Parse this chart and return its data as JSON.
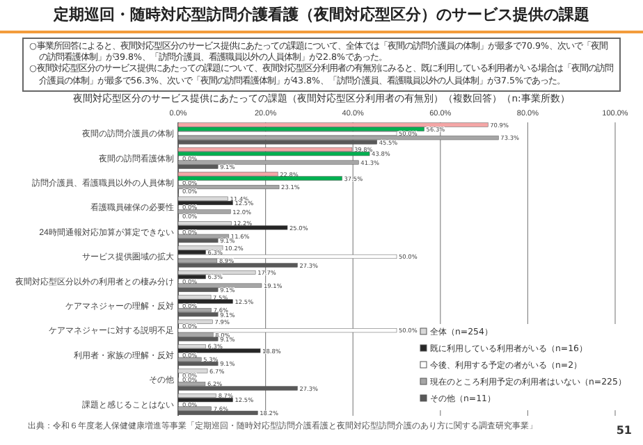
{
  "chart_data": {
    "type": "bar",
    "orientation": "horizontal",
    "title": "定期巡回・随時対応型訪問介護看護（夜間対応型区分）のサービス提供の課題",
    "subtitle": "夜間対応型区分のサービス提供にあたっての課題（夜間対応型区分利用者の有無別）（複数回答）（n:事業所数）",
    "annotations": [
      "○事業所回答によると、夜間対応型区分のサービス提供にあたっての課題について、全体では「夜間の訪問介護員の体制」が最多で70.9%、次いで「夜間の訪問看護体制」が39.8%、「訪問介護員、看護職員以外の人員体制」が22.8%であった。",
      "○夜間対応型区分のサービス提供にあたっての課題について、夜間対応型区分利用者の有無別にみると、既に利用している利用者がいる場合は「夜間の訪問介護員の体制」が最多で56.3%、次いで「夜間の訪問看護体制」が43.8%、「訪問介護員、看護職員以外の人員体制」が37.5%であった。",
      "出典：令和６年度老人保健健康増進等事業「定期巡回・随時対応型訪問介護看護と夜間対応型訪問介護のあり方に関する調査研究事業」",
      "51"
    ],
    "categories": [
      "夜間の訪問介護員の体制",
      "夜間の訪問看護体制",
      "訪問介護員、看護職員以外の人員体制",
      "看護職員確保の必要性",
      "24時間通報対応加算が算定できない",
      "サービス提供圏域の拡大",
      "夜間対応型区分以外の利用者との棲み分け",
      "ケアマネジャーの理解・反対",
      "ケアマネジャーに対する説明不足",
      "利用者・家族の理解・反対",
      "その他",
      "課題と感じることはない"
    ],
    "series": [
      {
        "name": "全体（n=254）",
        "color": "#d9d9d9",
        "colors": [
          "#f4a6a6",
          "#f4a6a6",
          "#f4a6a6",
          "#d9d9d9",
          "#d9d9d9",
          "#d9d9d9",
          "#d9d9d9",
          "#d9d9d9",
          "#d9d9d9",
          "#d9d9d9",
          "#d9d9d9",
          "#d9d9d9"
        ],
        "values": [
          70.9,
          39.8,
          22.8,
          11.4,
          12.2,
          10.2,
          17.7,
          7.5,
          7.9,
          6.3,
          6.7,
          8.7
        ],
        "value_labels": [
          "70.9%",
          "39.8%",
          "22.8%",
          "11.4%",
          "12.2%",
          "10.2%",
          "17.7%",
          "7.5%",
          "7.9%",
          "6.3%",
          "6.7%",
          "8.7%"
        ]
      },
      {
        "name": "既に利用している利用者がいる（n=16）",
        "color": "#262626",
        "colors": [
          "#00b050",
          "#00b050",
          "#00b050",
          "#262626",
          "#262626",
          "#262626",
          "#262626",
          "#262626",
          "#262626",
          "#262626",
          "#262626",
          "#262626"
        ],
        "values": [
          56.3,
          43.8,
          37.5,
          12.5,
          25.0,
          6.3,
          6.3,
          12.5,
          0.0,
          18.8,
          0.0,
          12.5
        ],
        "value_labels": [
          "56.3%",
          "43.8%",
          "37.5%",
          "12.5%",
          "25.0%",
          "6.3%",
          "6.3%",
          "12.5%",
          "0.0%",
          "18.8%",
          "0.0%",
          "12.5%"
        ]
      },
      {
        "name": "今後、利用する予定の者がいる（n=2）",
        "color": "#ffffff",
        "values": [
          50.0,
          0.0,
          0.0,
          0.0,
          0.0,
          50.0,
          0.0,
          0.0,
          50.0,
          0.0,
          0.0,
          0.0
        ],
        "value_labels": [
          "50.0%",
          "0.0%",
          "0.0%",
          "0.0%",
          "0.0%",
          "50.0%",
          "0.0%",
          "0.0%",
          "50.0%",
          "0.0%",
          "0.0%",
          "0.0%"
        ]
      },
      {
        "name": "現在のところ利用予定の利用者はいない（n=225）",
        "color": "#a6a6a6",
        "values": [
          73.3,
          41.3,
          23.1,
          12.0,
          11.6,
          8.9,
          19.1,
          7.6,
          8.0,
          5.3,
          6.2,
          7.6
        ],
        "value_labels": [
          "73.3%",
          "41.3%",
          "23.1%",
          "12.0%",
          "11.6%",
          "8.9%",
          "19.1%",
          "7.6%",
          "8.0%",
          "5.3%",
          "6.2%",
          "7.6%"
        ]
      },
      {
        "name": "その他（n=11）",
        "color": "#595959",
        "values": [
          45.5,
          9.1,
          0.0,
          0.0,
          9.1,
          27.3,
          9.1,
          9.1,
          9.1,
          9.1,
          27.3,
          18.2
        ],
        "value_labels": [
          "45.5%",
          "9.1%",
          "0.0%",
          "0.0%",
          "9.1%",
          "27.3%",
          "9.1%",
          "9.1%",
          "9.1%",
          "9.1%",
          "27.3%",
          "18.2%"
        ]
      }
    ],
    "xlim": [
      0,
      100
    ],
    "xticks": [
      {
        "value": 0,
        "label": "0.0%"
      },
      {
        "value": 20,
        "label": "20.0%"
      },
      {
        "value": 40,
        "label": "40.0%"
      },
      {
        "value": 60,
        "label": "60.0%"
      },
      {
        "value": 80,
        "label": "80.0%"
      },
      {
        "value": 100,
        "label": "100.0%"
      }
    ],
    "grid": "x",
    "legend": "bottom right"
  }
}
